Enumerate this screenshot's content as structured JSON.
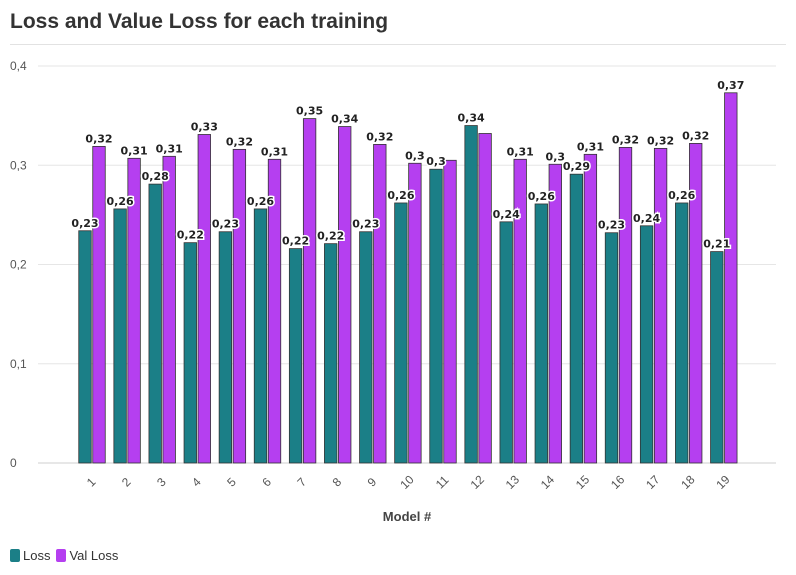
{
  "title": "Loss and Value Loss for each training",
  "chart_data": {
    "type": "bar",
    "title": "Loss and Value Loss for each training",
    "xlabel": "Model #",
    "ylabel": "",
    "ylim": [
      0,
      0.4
    ],
    "yticks": [
      0,
      0.1,
      0.2,
      0.3,
      0.4
    ],
    "ytick_labels": [
      "0",
      "0,1",
      "0,2",
      "0,3",
      "0,4"
    ],
    "categories": [
      "1",
      "2",
      "3",
      "4",
      "5",
      "6",
      "7",
      "8",
      "9",
      "10",
      "11",
      "12",
      "13",
      "14",
      "15",
      "16",
      "17",
      "18",
      "19"
    ],
    "series": [
      {
        "name": "Loss",
        "color": "#1b7f87",
        "values": [
          0.234,
          0.256,
          0.281,
          0.222,
          0.233,
          0.256,
          0.216,
          0.221,
          0.233,
          0.262,
          0.296,
          0.34,
          0.243,
          0.261,
          0.291,
          0.232,
          0.239,
          0.262,
          0.213
        ],
        "labels": [
          "0,23",
          "0,26",
          "0,28",
          "0,22",
          "0,23",
          "0,26",
          "0,22",
          "0,22",
          "0,23",
          "0,26",
          "0,3",
          "0,34",
          "0,24",
          "0,26",
          "0,29",
          "0,23",
          "0,24",
          "0,26",
          "0,21"
        ]
      },
      {
        "name": "Val Loss",
        "color": "#b53ff0",
        "values": [
          0.319,
          0.307,
          0.309,
          0.331,
          0.316,
          0.306,
          0.347,
          0.339,
          0.321,
          0.302,
          0.305,
          0.332,
          0.306,
          0.301,
          0.311,
          0.318,
          0.317,
          0.322,
          0.373
        ],
        "labels": [
          "0,32",
          "0,31",
          "0,31",
          "0,33",
          "0,32",
          "0,31",
          "0,35",
          "0,34",
          "0,32",
          "0,3",
          "",
          "",
          "0,31",
          "0,3",
          "0,31",
          "0,32",
          "0,32",
          "0,32",
          "0,37"
        ]
      }
    ],
    "grid": true,
    "legend_position": "bottom-left"
  }
}
